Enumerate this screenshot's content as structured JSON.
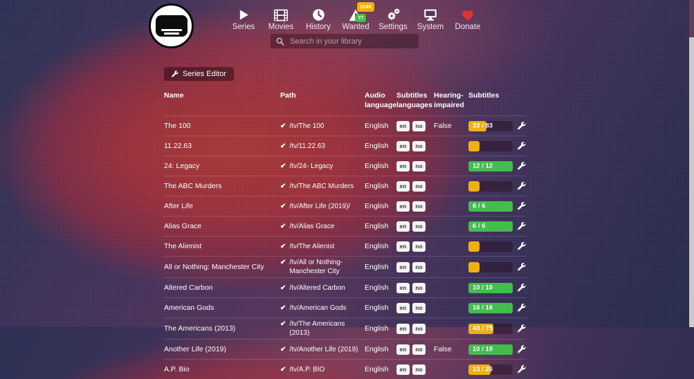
{
  "nav": {
    "items": [
      {
        "label": "Series"
      },
      {
        "label": "Movies"
      },
      {
        "label": "History"
      },
      {
        "label": "Wanted",
        "badges": [
          {
            "value": "3149",
            "bg": "#eeb012"
          },
          {
            "value": "77",
            "bg": "#42bd4e"
          }
        ]
      },
      {
        "label": "Settings"
      },
      {
        "label": "System"
      },
      {
        "label": "Donate"
      }
    ],
    "search_placeholder": "Search in your library"
  },
  "toolbar": {
    "series_editor_label": "Series Editor"
  },
  "colors": {
    "yellow": "#eeb012",
    "green": "#42bd4e",
    "heart": "#dd3333"
  },
  "table": {
    "headers": [
      "Name",
      "Path",
      "Audio language",
      "Subtitles languages",
      "Hearing-impaired",
      "Subtitles"
    ],
    "rows": [
      {
        "name": "The 100",
        "path": "/tv/The 100",
        "audio": "English",
        "langs": [
          "en",
          "no"
        ],
        "hi": "False",
        "progress": {
          "label": "33 / 83",
          "pct": 40,
          "color": "yellow"
        }
      },
      {
        "name": "11.22.63",
        "path": "/tv/11.22.63",
        "audio": "English",
        "langs": [
          "en",
          "no"
        ],
        "hi": "",
        "progress": {
          "label": "",
          "pct": 25,
          "color": "yellow"
        }
      },
      {
        "name": "24: Legacy",
        "path": "/tv/24- Legacy",
        "audio": "English",
        "langs": [
          "en",
          "no"
        ],
        "hi": "",
        "progress": {
          "label": "12 / 12",
          "pct": 100,
          "color": "green"
        }
      },
      {
        "name": "The ABC Murders",
        "path": "/tv/The ABC Murders",
        "audio": "English",
        "langs": [
          "en",
          "no"
        ],
        "hi": "",
        "progress": {
          "label": "",
          "pct": 25,
          "color": "yellow"
        }
      },
      {
        "name": "After Life",
        "path": "/tv/After Life (2019)/",
        "audio": "English",
        "langs": [
          "en",
          "no"
        ],
        "hi": "",
        "progress": {
          "label": "6 / 6",
          "pct": 100,
          "color": "green"
        }
      },
      {
        "name": "Alias Grace",
        "path": "/tv/Alias Grace",
        "audio": "English",
        "langs": [
          "en",
          "no"
        ],
        "hi": "",
        "progress": {
          "label": "6 / 6",
          "pct": 100,
          "color": "green"
        }
      },
      {
        "name": "The Alienist",
        "path": "/tv/The Alienist",
        "audio": "English",
        "langs": [
          "en",
          "no"
        ],
        "hi": "",
        "progress": {
          "label": "",
          "pct": 25,
          "color": "yellow"
        }
      },
      {
        "name": "All or Nothing: Manchester City",
        "path": "/tv/All or Nothing- Manchester City",
        "audio": "English",
        "langs": [
          "en",
          "no"
        ],
        "hi": "",
        "progress": {
          "label": "",
          "pct": 25,
          "color": "yellow"
        }
      },
      {
        "name": "Altered Carbon",
        "path": "/tv/Altered Carbon",
        "audio": "English",
        "langs": [
          "en",
          "no"
        ],
        "hi": "",
        "progress": {
          "label": "10 / 10",
          "pct": 100,
          "color": "green"
        }
      },
      {
        "name": "American Gods",
        "path": "/tv/American Gods",
        "audio": "English",
        "langs": [
          "en",
          "no"
        ],
        "hi": "",
        "progress": {
          "label": "16 / 16",
          "pct": 100,
          "color": "green"
        }
      },
      {
        "name": "The Americans (2013)",
        "path": "/tv/The Americans (2013)",
        "audio": "English",
        "langs": [
          "en",
          "no"
        ],
        "hi": "",
        "progress": {
          "label": "43 / 75",
          "pct": 57,
          "color": "yellow"
        }
      },
      {
        "name": "Another Life (2019)",
        "path": "/tv/Another Life (2019)",
        "audio": "English",
        "langs": [
          "en",
          "no"
        ],
        "hi": "False",
        "progress": {
          "label": "10 / 10",
          "pct": 100,
          "color": "green"
        }
      },
      {
        "name": "A.P. Bio",
        "path": "/tv/A.P. BIO",
        "audio": "English",
        "langs": [
          "en",
          "no"
        ],
        "hi": "",
        "progress": {
          "label": "13 / 26",
          "pct": 50,
          "color": "yellow"
        }
      }
    ]
  }
}
